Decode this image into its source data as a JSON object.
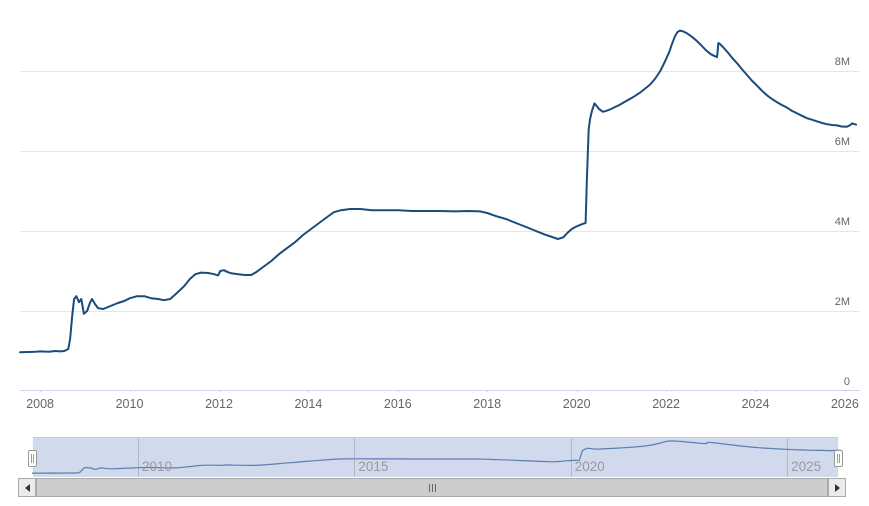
{
  "colors": {
    "main_line": "#1b4b7c",
    "nav_line": "#5b7db1",
    "nav_mask": "rgba(102,133,194,0.3)",
    "nav_outline": "#cccccc",
    "gridline": "#e6e6e6",
    "nav_gridline": "#d0d0d0",
    "axis_line": "#ccd6eb",
    "tick": "#ccd6eb",
    "axis_label": "#666666",
    "nav_label": "#999999",
    "scrollbar_thumb": "#cccccc",
    "scrollbar_track": "#f2f2f2",
    "scrollbar_button": "#ebebeb",
    "scrollbar_border": "#aaaaaa",
    "scrollbar_arrow": "#333333",
    "rivet": "#666666"
  },
  "main_chart": {
    "y_axis_labels": [
      {
        "label": "8M",
        "value": 8
      },
      {
        "label": "6M",
        "value": 6
      },
      {
        "label": "4M",
        "value": 4
      },
      {
        "label": "2M",
        "value": 2
      },
      {
        "label": "0",
        "value": 0
      }
    ],
    "x_axis_labels": [
      {
        "label": "2008",
        "year": 2008
      },
      {
        "label": "2010",
        "year": 2010
      },
      {
        "label": "2012",
        "year": 2012
      },
      {
        "label": "2014",
        "year": 2014
      },
      {
        "label": "2016",
        "year": 2016
      },
      {
        "label": "2018",
        "year": 2018
      },
      {
        "label": "2020",
        "year": 2020
      },
      {
        "label": "2022",
        "year": 2022
      },
      {
        "label": "2024",
        "year": 2024
      },
      {
        "label": "2026",
        "year": 2026
      }
    ]
  },
  "navigator": {
    "labels": [
      {
        "label": "2010",
        "year": 2010
      },
      {
        "label": "2015",
        "year": 2015
      },
      {
        "label": "2020",
        "year": 2020
      },
      {
        "label": "2025",
        "year": 2025
      }
    ],
    "selection": {
      "start_year": 2007.57,
      "end_year": 2026.18
    },
    "left_handle_icon": "drag-handle",
    "right_handle_icon": "drag-handle"
  },
  "scrollbar": {
    "left_button_icon": "left-arrow",
    "right_button_icon": "right-arrow",
    "thumb_icon": "grip-rivets"
  },
  "chart_data": {
    "type": "line",
    "title": "",
    "xlabel": "",
    "ylabel": "",
    "x_range": [
      2007.55,
      2026.27
    ],
    "ylim": [
      0,
      9.8
    ],
    "y_unit": "M",
    "y_ticks": [
      0,
      2,
      4,
      6,
      8
    ],
    "y_tick_labels": [
      "0",
      "2M",
      "4M",
      "6M",
      "8M"
    ],
    "x_ticks": [
      2008,
      2010,
      2012,
      2014,
      2016,
      2018,
      2020,
      2022,
      2024,
      2026
    ],
    "grid": true,
    "legend": false,
    "series": [
      {
        "name": "series-1",
        "color": "#1b4b7c",
        "points": [
          [
            2007.55,
            0.97
          ],
          [
            2007.9,
            0.98
          ],
          [
            2008.0,
            0.99
          ],
          [
            2008.2,
            0.98
          ],
          [
            2008.34,
            1.0
          ],
          [
            2008.45,
            0.99
          ],
          [
            2008.54,
            1.0
          ],
          [
            2008.63,
            1.05
          ],
          [
            2008.67,
            1.3
          ],
          [
            2008.72,
            1.9
          ],
          [
            2008.76,
            2.3
          ],
          [
            2008.81,
            2.37
          ],
          [
            2008.87,
            2.22
          ],
          [
            2008.92,
            2.3
          ],
          [
            2008.98,
            1.93
          ],
          [
            2009.05,
            2.0
          ],
          [
            2009.12,
            2.22
          ],
          [
            2009.16,
            2.3
          ],
          [
            2009.23,
            2.17
          ],
          [
            2009.3,
            2.07
          ],
          [
            2009.41,
            2.05
          ],
          [
            2009.52,
            2.1
          ],
          [
            2009.63,
            2.15
          ],
          [
            2009.74,
            2.2
          ],
          [
            2009.88,
            2.25
          ],
          [
            2010.01,
            2.32
          ],
          [
            2010.17,
            2.37
          ],
          [
            2010.33,
            2.37
          ],
          [
            2010.48,
            2.32
          ],
          [
            2010.64,
            2.3
          ],
          [
            2010.77,
            2.27
          ],
          [
            2010.91,
            2.3
          ],
          [
            2011.06,
            2.45
          ],
          [
            2011.22,
            2.62
          ],
          [
            2011.35,
            2.8
          ],
          [
            2011.47,
            2.92
          ],
          [
            2011.6,
            2.96
          ],
          [
            2011.76,
            2.95
          ],
          [
            2011.89,
            2.92
          ],
          [
            2011.98,
            2.89
          ],
          [
            2012.03,
            3.0
          ],
          [
            2012.11,
            3.02
          ],
          [
            2012.2,
            2.97
          ],
          [
            2012.29,
            2.94
          ],
          [
            2012.43,
            2.92
          ],
          [
            2012.58,
            2.9
          ],
          [
            2012.72,
            2.9
          ],
          [
            2012.83,
            2.97
          ],
          [
            2012.99,
            3.1
          ],
          [
            2013.17,
            3.25
          ],
          [
            2013.34,
            3.42
          ],
          [
            2013.52,
            3.57
          ],
          [
            2013.7,
            3.72
          ],
          [
            2013.88,
            3.9
          ],
          [
            2014.06,
            4.05
          ],
          [
            2014.24,
            4.2
          ],
          [
            2014.42,
            4.35
          ],
          [
            2014.57,
            4.47
          ],
          [
            2014.73,
            4.52
          ],
          [
            2014.93,
            4.55
          ],
          [
            2015.16,
            4.55
          ],
          [
            2015.42,
            4.52
          ],
          [
            2015.71,
            4.52
          ],
          [
            2016.01,
            4.52
          ],
          [
            2016.32,
            4.5
          ],
          [
            2016.63,
            4.5
          ],
          [
            2016.94,
            4.5
          ],
          [
            2017.28,
            4.49
          ],
          [
            2017.57,
            4.5
          ],
          [
            2017.84,
            4.49
          ],
          [
            2018.0,
            4.45
          ],
          [
            2018.2,
            4.37
          ],
          [
            2018.42,
            4.3
          ],
          [
            2018.64,
            4.2
          ],
          [
            2018.87,
            4.1
          ],
          [
            2019.09,
            4.0
          ],
          [
            2019.29,
            3.91
          ],
          [
            2019.45,
            3.85
          ],
          [
            2019.58,
            3.8
          ],
          [
            2019.7,
            3.84
          ],
          [
            2019.79,
            3.95
          ],
          [
            2019.88,
            4.04
          ],
          [
            2019.97,
            4.1
          ],
          [
            2020.05,
            4.14
          ],
          [
            2020.14,
            4.18
          ],
          [
            2020.2,
            4.2
          ],
          [
            2020.23,
            5.3
          ],
          [
            2020.27,
            6.55
          ],
          [
            2020.3,
            6.8
          ],
          [
            2020.34,
            7.0
          ],
          [
            2020.4,
            7.19
          ],
          [
            2020.43,
            7.15
          ],
          [
            2020.5,
            7.05
          ],
          [
            2020.59,
            6.98
          ],
          [
            2020.68,
            7.01
          ],
          [
            2020.77,
            7.05
          ],
          [
            2020.86,
            7.1
          ],
          [
            2020.97,
            7.16
          ],
          [
            2021.08,
            7.23
          ],
          [
            2021.19,
            7.3
          ],
          [
            2021.31,
            7.38
          ],
          [
            2021.42,
            7.46
          ],
          [
            2021.53,
            7.56
          ],
          [
            2021.64,
            7.66
          ],
          [
            2021.75,
            7.8
          ],
          [
            2021.87,
            8.0
          ],
          [
            2021.98,
            8.25
          ],
          [
            2022.07,
            8.47
          ],
          [
            2022.13,
            8.67
          ],
          [
            2022.2,
            8.87
          ],
          [
            2022.25,
            8.97
          ],
          [
            2022.31,
            9.01
          ],
          [
            2022.38,
            8.99
          ],
          [
            2022.47,
            8.94
          ],
          [
            2022.56,
            8.87
          ],
          [
            2022.67,
            8.77
          ],
          [
            2022.78,
            8.65
          ],
          [
            2022.89,
            8.52
          ],
          [
            2023.0,
            8.42
          ],
          [
            2023.09,
            8.37
          ],
          [
            2023.14,
            8.35
          ],
          [
            2023.17,
            8.7
          ],
          [
            2023.21,
            8.67
          ],
          [
            2023.27,
            8.6
          ],
          [
            2023.36,
            8.49
          ],
          [
            2023.47,
            8.34
          ],
          [
            2023.59,
            8.19
          ],
          [
            2023.7,
            8.04
          ],
          [
            2023.81,
            7.9
          ],
          [
            2023.92,
            7.76
          ],
          [
            2024.03,
            7.64
          ],
          [
            2024.15,
            7.5
          ],
          [
            2024.26,
            7.39
          ],
          [
            2024.37,
            7.3
          ],
          [
            2024.48,
            7.22
          ],
          [
            2024.59,
            7.15
          ],
          [
            2024.71,
            7.08
          ],
          [
            2024.82,
            7.0
          ],
          [
            2024.93,
            6.94
          ],
          [
            2025.04,
            6.88
          ],
          [
            2025.15,
            6.82
          ],
          [
            2025.27,
            6.78
          ],
          [
            2025.38,
            6.74
          ],
          [
            2025.49,
            6.7
          ],
          [
            2025.6,
            6.67
          ],
          [
            2025.71,
            6.65
          ],
          [
            2025.82,
            6.64
          ],
          [
            2025.94,
            6.61
          ],
          [
            2026.05,
            6.61
          ],
          [
            2026.12,
            6.65
          ],
          [
            2026.16,
            6.69
          ],
          [
            2026.25,
            6.66
          ]
        ]
      }
    ]
  }
}
